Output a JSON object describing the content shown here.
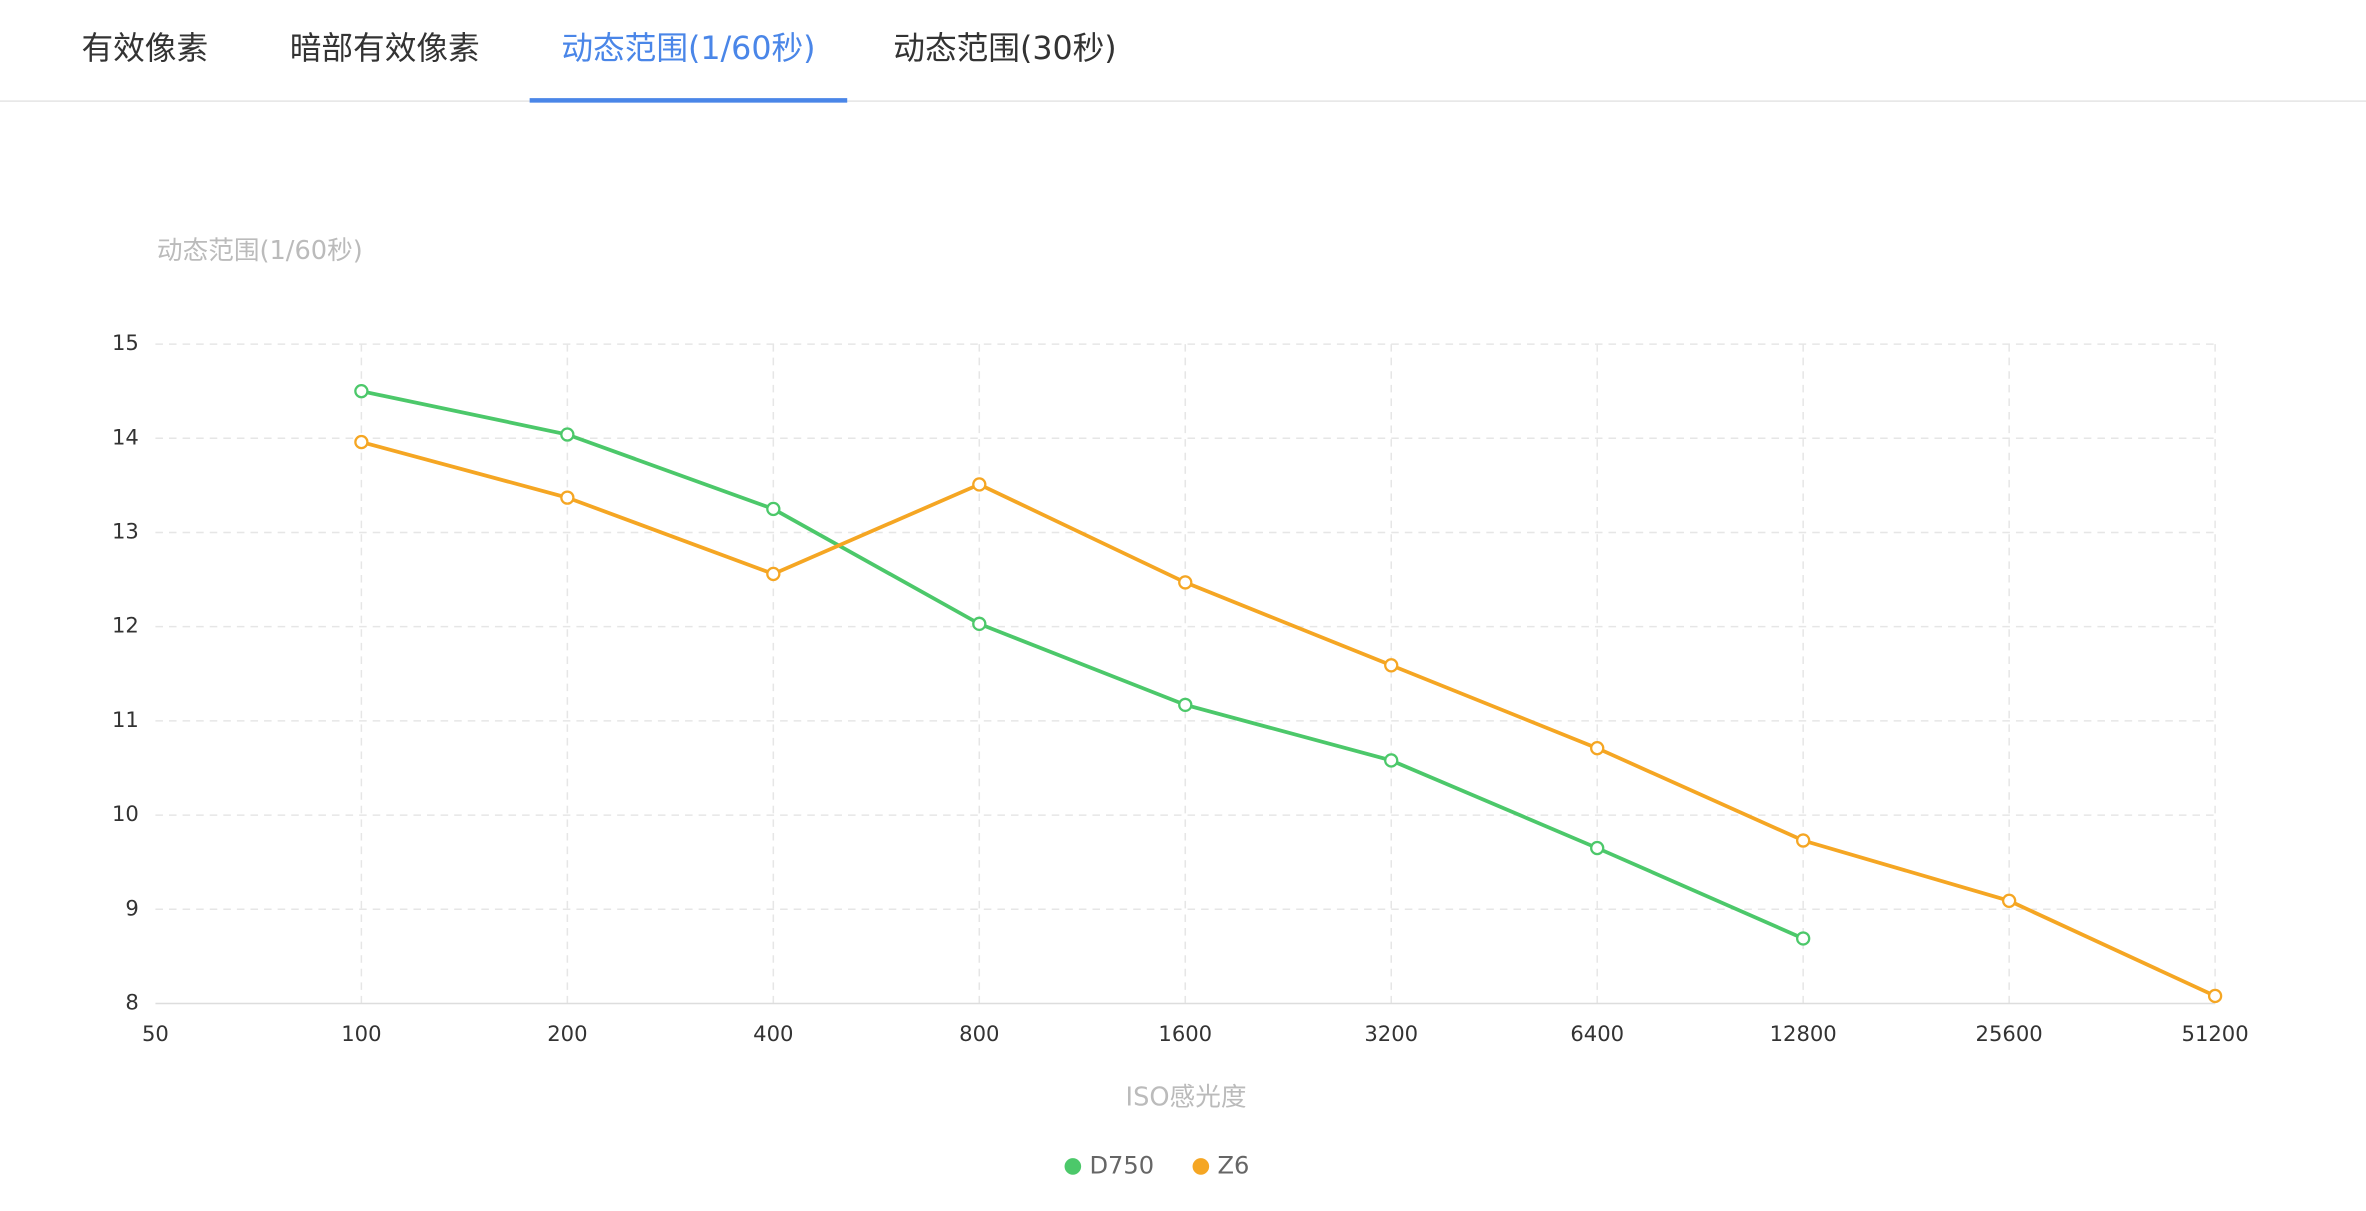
{
  "tabs": [
    "有效像素",
    "暗部有效像素",
    "动态范围(1/60秒)",
    "动态范围(30秒)"
  ],
  "active_tab": 2,
  "chart_data": {
    "type": "line",
    "title": "动态范围(1/60秒)",
    "x_label": "ISO感光度",
    "categories": [
      "50",
      "100",
      "200",
      "400",
      "800",
      "1600",
      "3200",
      "6400",
      "12800",
      "25600",
      "51200"
    ],
    "series": [
      {
        "name": "D750",
        "color": "#4cc86a",
        "values": [
          null,
          14.5,
          14.04,
          13.25,
          12.03,
          11.17,
          10.58,
          9.65,
          8.69,
          null,
          null
        ]
      },
      {
        "name": "Z6",
        "color": "#f5a623",
        "values": [
          null,
          13.96,
          13.37,
          12.56,
          13.51,
          12.47,
          11.59,
          10.71,
          9.73,
          9.09,
          8.08
        ]
      }
    ],
    "ylim": [
      8,
      15
    ],
    "yticks": [
      8,
      9,
      10,
      11,
      12,
      13,
      14,
      15
    ],
    "grid": true
  }
}
